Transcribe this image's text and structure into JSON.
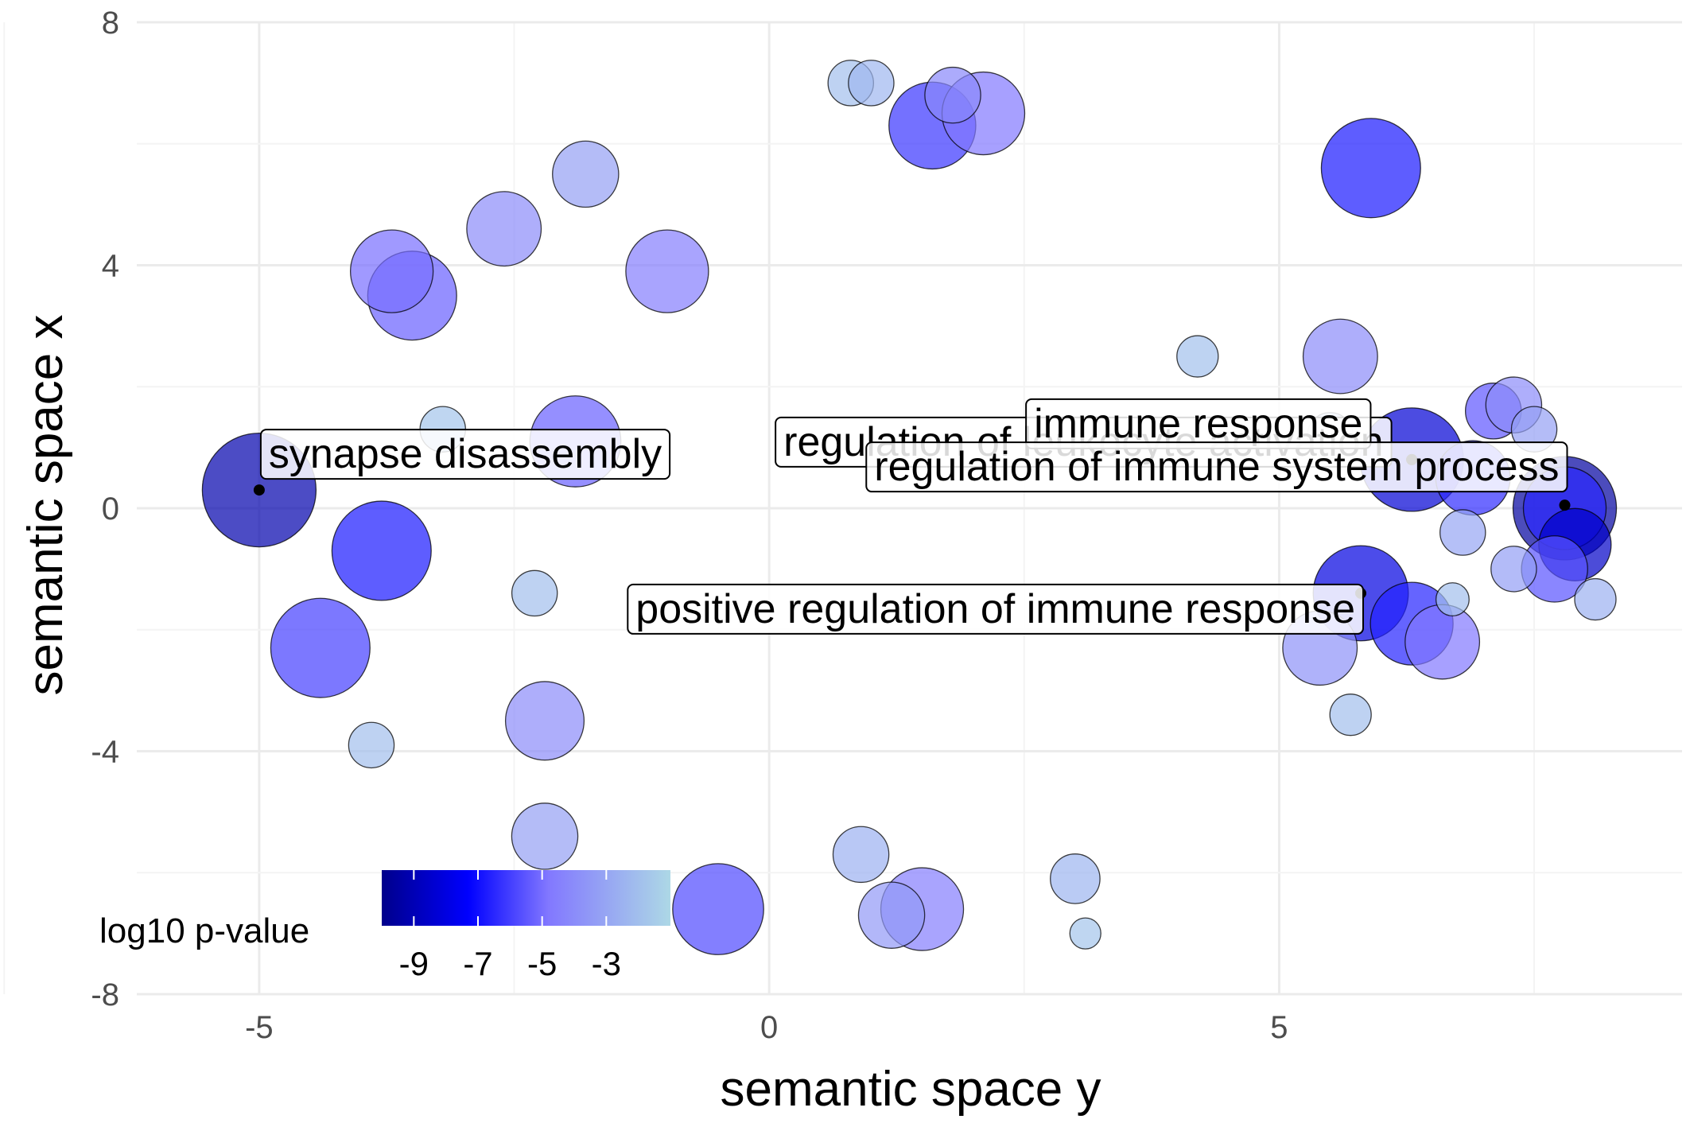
{
  "chart_data": {
    "type": "scatter",
    "title": "",
    "xlabel": "semantic space y",
    "ylabel": "semantic space x",
    "xlim": [
      -6.2,
      8.95
    ],
    "ylim": [
      -8,
      8
    ],
    "x_ticks": [
      -5,
      0,
      5
    ],
    "x_tick_labels": [
      "-5",
      "0",
      "5"
    ],
    "y_ticks": [
      -8,
      -4,
      0,
      4,
      8
    ],
    "y_tick_labels": [
      "-8",
      "-4",
      "0",
      "4",
      "8"
    ],
    "grid": true,
    "legend": {
      "title": "log10 p-value",
      "placement": "bottom-left",
      "colorbar_range": [
        -10,
        -1.0
      ],
      "ticks": [
        -9,
        -7,
        -5,
        -3
      ],
      "tick_labels": [
        "-9",
        "-7",
        "-5",
        "-3"
      ],
      "colors": [
        "#00008b",
        "#0000ff",
        "#8a7bff",
        "#add8e6"
      ]
    },
    "points": [
      {
        "x": -5.0,
        "y": 0.3,
        "size": 5.5,
        "log10p": -9.2
      },
      {
        "x": -3.8,
        "y": -0.7,
        "size": 4.8,
        "log10p": -6.8
      },
      {
        "x": -4.4,
        "y": -2.3,
        "size": 4.8,
        "log10p": -6.0
      },
      {
        "x": -3.9,
        "y": -3.9,
        "size": 2.2,
        "log10p": -2.0
      },
      {
        "x": -3.7,
        "y": 3.9,
        "size": 4.0,
        "log10p": -5.0
      },
      {
        "x": -3.5,
        "y": 3.5,
        "size": 4.3,
        "log10p": -5.3
      },
      {
        "x": -3.2,
        "y": 1.3,
        "size": 2.2,
        "log10p": -1.8
      },
      {
        "x": -2.6,
        "y": 4.6,
        "size": 3.6,
        "log10p": -4.0
      },
      {
        "x": -1.8,
        "y": 5.5,
        "size": 3.2,
        "log10p": -3.2
      },
      {
        "x": -1.9,
        "y": 1.1,
        "size": 4.4,
        "log10p": -5.3
      },
      {
        "x": -2.3,
        "y": -1.4,
        "size": 2.2,
        "log10p": -2.0
      },
      {
        "x": -2.2,
        "y": -3.5,
        "size": 3.8,
        "log10p": -4.0
      },
      {
        "x": -2.2,
        "y": -5.4,
        "size": 3.2,
        "log10p": -3.2
      },
      {
        "x": -1.0,
        "y": 3.9,
        "size": 4.0,
        "log10p": -4.6
      },
      {
        "x": -0.5,
        "y": -6.6,
        "size": 4.4,
        "log10p": -5.8
      },
      {
        "x": 0.8,
        "y": 7.0,
        "size": 2.2,
        "log10p": -2.0
      },
      {
        "x": 1.0,
        "y": 7.0,
        "size": 2.2,
        "log10p": -2.3
      },
      {
        "x": 1.6,
        "y": 6.3,
        "size": 4.2,
        "log10p": -6.2
      },
      {
        "x": 1.8,
        "y": 6.8,
        "size": 2.7,
        "log10p": -4.2
      },
      {
        "x": 2.1,
        "y": 6.5,
        "size": 4.0,
        "log10p": -4.8
      },
      {
        "x": 0.9,
        "y": -5.7,
        "size": 2.7,
        "log10p": -2.6
      },
      {
        "x": 1.2,
        "y": -6.7,
        "size": 3.2,
        "log10p": -3.5
      },
      {
        "x": 1.5,
        "y": -6.6,
        "size": 4.0,
        "log10p": -4.6
      },
      {
        "x": 3.0,
        "y": -6.1,
        "size": 2.4,
        "log10p": -2.4
      },
      {
        "x": 3.1,
        "y": -7.0,
        "size": 1.5,
        "log10p": -1.8
      },
      {
        "x": 4.2,
        "y": 2.5,
        "size": 2.0,
        "log10p": -1.9
      },
      {
        "x": 5.9,
        "y": 5.6,
        "size": 4.8,
        "log10p": -6.8
      },
      {
        "x": 5.6,
        "y": 2.5,
        "size": 3.6,
        "log10p": -4.0
      },
      {
        "x": 5.5,
        "y": 1.2,
        "size": 2.2,
        "log10p": -2.2
      },
      {
        "x": 5.8,
        "y": -1.4,
        "size": 4.6,
        "log10p": -8.0
      },
      {
        "x": 5.4,
        "y": -2.3,
        "size": 3.6,
        "log10p": -3.8
      },
      {
        "x": 5.7,
        "y": -3.4,
        "size": 2.0,
        "log10p": -2.0
      },
      {
        "x": 6.3,
        "y": -1.9,
        "size": 4.0,
        "log10p": -6.6
      },
      {
        "x": 6.6,
        "y": -2.2,
        "size": 3.6,
        "log10p": -4.8
      },
      {
        "x": 6.7,
        "y": -1.5,
        "size": 1.6,
        "log10p": -2.0
      },
      {
        "x": 6.3,
        "y": 0.8,
        "size": 5.0,
        "log10p": -8.3
      },
      {
        "x": 6.9,
        "y": 0.5,
        "size": 3.6,
        "log10p": -6.4
      },
      {
        "x": 7.1,
        "y": 1.6,
        "size": 2.7,
        "log10p": -5.5
      },
      {
        "x": 7.3,
        "y": 1.7,
        "size": 2.7,
        "log10p": -4.0
      },
      {
        "x": 7.5,
        "y": 1.3,
        "size": 2.2,
        "log10p": -3.2
      },
      {
        "x": 7.7,
        "y": -1.0,
        "size": 3.2,
        "log10p": -5.6
      },
      {
        "x": 7.8,
        "y": 0.0,
        "size": 4.0,
        "log10p": -6.5
      },
      {
        "x": 7.8,
        "y": 0.0,
        "size": 5.0,
        "log10p": -9.5
      },
      {
        "x": 7.9,
        "y": -0.6,
        "size": 3.5,
        "log10p": -8.6
      },
      {
        "x": 7.3,
        "y": -1.0,
        "size": 2.2,
        "log10p": -3.3
      },
      {
        "x": 8.1,
        "y": -1.5,
        "size": 2.0,
        "log10p": -2.6
      },
      {
        "x": 6.8,
        "y": -0.4,
        "size": 2.2,
        "log10p": -3.0
      }
    ],
    "annotations": [
      {
        "text": "synapse disassembly",
        "x": -5.0,
        "y": 0.3
      },
      {
        "text": "regulation of leukocyte activation",
        "x": 6.3,
        "y": 0.8
      },
      {
        "text": "immune response",
        "x": 6.3,
        "y": 0.8
      },
      {
        "text": "regulation of immune system process",
        "x": 7.8,
        "y": 0.05
      },
      {
        "text": "positive regulation of immune response",
        "x": 5.8,
        "y": -1.4
      }
    ]
  }
}
